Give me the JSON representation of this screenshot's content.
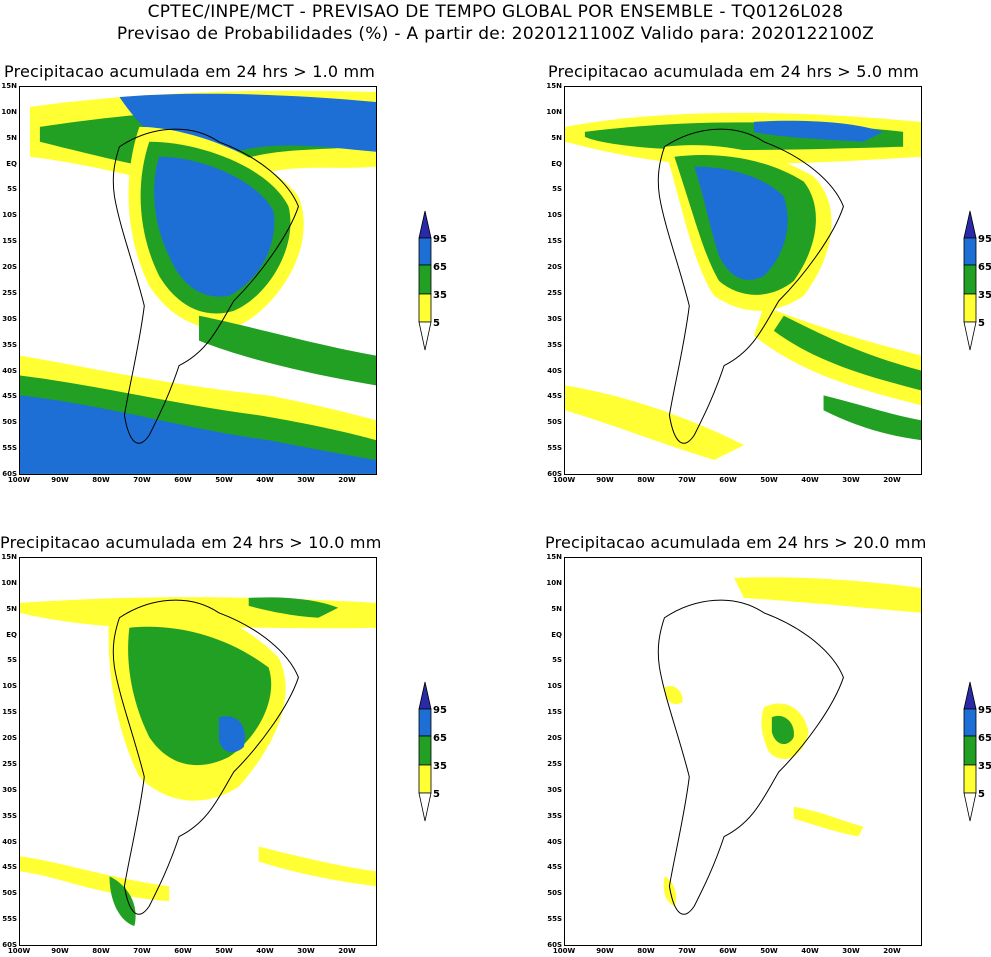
{
  "header": {
    "line1": "CPTEC/INPE/MCT - PREVISAO DE TEMPO GLOBAL POR ENSEMBLE - TQ0126L028",
    "line2": "Previsao de Probabilidades (%) -  A partir de: 2020121100Z  Valido para: 2020122100Z"
  },
  "lat_labels": [
    "15N",
    "10N",
    "5N",
    "EQ",
    "5S",
    "10S",
    "15S",
    "20S",
    "25S",
    "30S",
    "35S",
    "40S",
    "45S",
    "50S",
    "55S",
    "60S"
  ],
  "lon_labels": [
    "100W",
    "90W",
    "80W",
    "70W",
    "60W",
    "50W",
    "40W",
    "30W",
    "20W"
  ],
  "colorbar": {
    "levels": [
      "95",
      "65",
      "35",
      "5"
    ],
    "colors": {
      "c5": "#ffff33",
      "c35": "#22a024",
      "c65": "#1d6fd6",
      "c95": "#2a2aa8"
    }
  },
  "panels": [
    {
      "title": "Precipitacao acumulada em 24 hrs > 1.0 mm"
    },
    {
      "title": "Precipitacao acumulada em 24 hrs > 5.0 mm"
    },
    {
      "title": "Precipitacao acumulada em 24 hrs > 10.0 mm"
    },
    {
      "title": "Precipitacao acumulada em 24 hrs > 20.0 mm"
    }
  ]
}
